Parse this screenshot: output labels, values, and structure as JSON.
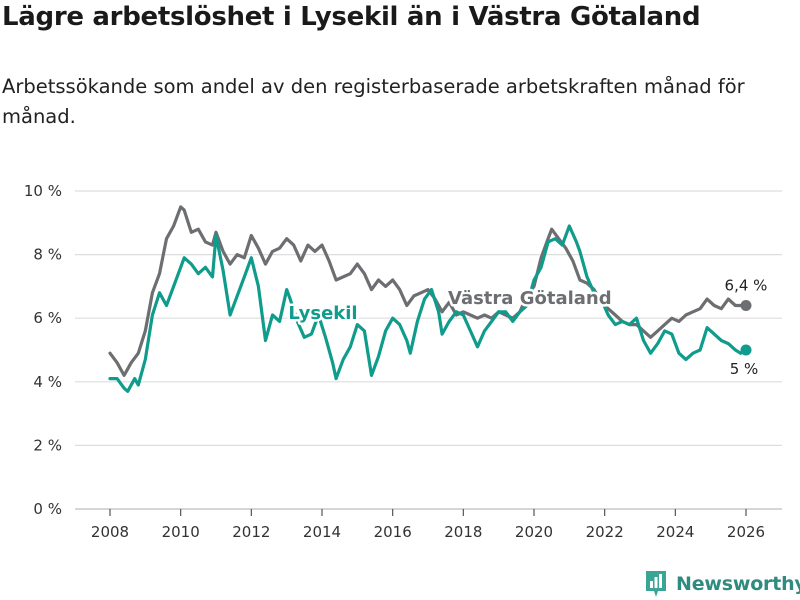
{
  "header": {
    "title": "Lägre arbetslöshet i Lysekil än i Västra Götaland",
    "subtitle": "Arbetssökande som andel av den registerbaserade arbetskraften månad för månad."
  },
  "brand": {
    "name": "Newsworthy"
  },
  "chart_data": {
    "type": "line",
    "title": "Lägre arbetslöshet i Lysekil än i Västra Götaland",
    "subtitle": "Arbetssökande som andel av den registerbaserade arbetskraften månad för månad.",
    "xlabel": "",
    "ylabel": "",
    "xlim": [
      2007.4,
      2026.6
    ],
    "ylim": [
      0,
      10
    ],
    "grid": true,
    "y_ticks": [
      {
        "value": 0,
        "label": "0 %"
      },
      {
        "value": 2,
        "label": "2 %"
      },
      {
        "value": 4,
        "label": "4 %"
      },
      {
        "value": 6,
        "label": "6 %"
      },
      {
        "value": 8,
        "label": "8 %"
      },
      {
        "value": 10,
        "label": "10 %"
      }
    ],
    "x_ticks": [
      {
        "value": 2008,
        "label": "2008"
      },
      {
        "value": 2010,
        "label": "2010"
      },
      {
        "value": 2012,
        "label": "2012"
      },
      {
        "value": 2014,
        "label": "2014"
      },
      {
        "value": 2016,
        "label": "2016"
      },
      {
        "value": 2018,
        "label": "2018"
      },
      {
        "value": 2020,
        "label": "2020"
      },
      {
        "value": 2022,
        "label": "2022"
      },
      {
        "value": 2024,
        "label": "2024"
      },
      {
        "value": 2026,
        "label": "2026"
      }
    ],
    "series": [
      {
        "name": "Västra Götaland",
        "color": "#6d6e71",
        "label_at": [
          2009.0,
          6.5
        ],
        "end_label": "6,4 %",
        "points": [
          [
            2008.0,
            4.9
          ],
          [
            2008.2,
            4.6
          ],
          [
            2008.4,
            4.2
          ],
          [
            2008.6,
            4.6
          ],
          [
            2008.8,
            4.9
          ],
          [
            2009.0,
            5.6
          ],
          [
            2009.2,
            6.8
          ],
          [
            2009.4,
            7.4
          ],
          [
            2009.6,
            8.5
          ],
          [
            2009.8,
            8.9
          ],
          [
            2010.0,
            9.5
          ],
          [
            2010.1,
            9.4
          ],
          [
            2010.3,
            8.7
          ],
          [
            2010.5,
            8.8
          ],
          [
            2010.7,
            8.4
          ],
          [
            2010.9,
            8.3
          ],
          [
            2011.0,
            8.7
          ],
          [
            2011.2,
            8.1
          ],
          [
            2011.4,
            7.7
          ],
          [
            2011.6,
            8.0
          ],
          [
            2011.8,
            7.9
          ],
          [
            2012.0,
            8.6
          ],
          [
            2012.2,
            8.2
          ],
          [
            2012.4,
            7.7
          ],
          [
            2012.6,
            8.1
          ],
          [
            2012.8,
            8.2
          ],
          [
            2013.0,
            8.5
          ],
          [
            2013.2,
            8.3
          ],
          [
            2013.4,
            7.8
          ],
          [
            2013.6,
            8.3
          ],
          [
            2013.8,
            8.1
          ],
          [
            2014.0,
            8.3
          ],
          [
            2014.2,
            7.8
          ],
          [
            2014.4,
            7.2
          ],
          [
            2014.6,
            7.3
          ],
          [
            2014.8,
            7.4
          ],
          [
            2015.0,
            7.7
          ],
          [
            2015.2,
            7.4
          ],
          [
            2015.4,
            6.9
          ],
          [
            2015.6,
            7.2
          ],
          [
            2015.8,
            7.0
          ],
          [
            2016.0,
            7.2
          ],
          [
            2016.2,
            6.9
          ],
          [
            2016.4,
            6.4
          ],
          [
            2016.6,
            6.7
          ],
          [
            2016.8,
            6.8
          ],
          [
            2017.0,
            6.9
          ],
          [
            2017.2,
            6.6
          ],
          [
            2017.4,
            6.2
          ],
          [
            2017.6,
            6.5
          ],
          [
            2017.8,
            6.1
          ],
          [
            2018.0,
            6.2
          ],
          [
            2018.2,
            6.1
          ],
          [
            2018.4,
            6.0
          ],
          [
            2018.6,
            6.1
          ],
          [
            2018.8,
            6.0
          ],
          [
            2019.0,
            6.2
          ],
          [
            2019.2,
            6.1
          ],
          [
            2019.4,
            6.0
          ],
          [
            2019.6,
            6.2
          ],
          [
            2019.8,
            6.7
          ],
          [
            2020.0,
            7.0
          ],
          [
            2020.2,
            7.9
          ],
          [
            2020.4,
            8.5
          ],
          [
            2020.5,
            8.8
          ],
          [
            2020.7,
            8.5
          ],
          [
            2020.9,
            8.2
          ],
          [
            2021.1,
            7.8
          ],
          [
            2021.3,
            7.2
          ],
          [
            2021.5,
            7.1
          ],
          [
            2021.7,
            6.9
          ],
          [
            2021.9,
            6.5
          ],
          [
            2022.1,
            6.3
          ],
          [
            2022.3,
            6.1
          ],
          [
            2022.5,
            5.9
          ],
          [
            2022.7,
            5.8
          ],
          [
            2022.9,
            5.8
          ],
          [
            2023.1,
            5.6
          ],
          [
            2023.3,
            5.4
          ],
          [
            2023.5,
            5.6
          ],
          [
            2023.7,
            5.8
          ],
          [
            2023.9,
            6.0
          ],
          [
            2024.1,
            5.9
          ],
          [
            2024.3,
            6.1
          ],
          [
            2024.5,
            6.2
          ],
          [
            2024.7,
            6.3
          ],
          [
            2024.9,
            6.6
          ],
          [
            2025.1,
            6.4
          ],
          [
            2025.3,
            6.3
          ],
          [
            2025.5,
            6.6
          ],
          [
            2025.7,
            6.4
          ],
          [
            2025.85,
            6.4
          ],
          [
            2026.0,
            6.4
          ]
        ]
      },
      {
        "name": "Lysekil",
        "color": "#0f9c8c",
        "label_at": [
          2013.9,
          6.1
        ],
        "end_label": "5 %",
        "points": [
          [
            2008.0,
            4.1
          ],
          [
            2008.2,
            4.1
          ],
          [
            2008.4,
            3.8
          ],
          [
            2008.5,
            3.7
          ],
          [
            2008.7,
            4.1
          ],
          [
            2008.8,
            3.9
          ],
          [
            2009.0,
            4.7
          ],
          [
            2009.2,
            6.1
          ],
          [
            2009.4,
            6.8
          ],
          [
            2009.6,
            6.4
          ],
          [
            2009.8,
            7.0
          ],
          [
            2010.0,
            7.6
          ],
          [
            2010.1,
            7.9
          ],
          [
            2010.3,
            7.7
          ],
          [
            2010.5,
            7.4
          ],
          [
            2010.7,
            7.6
          ],
          [
            2010.9,
            7.3
          ],
          [
            2011.0,
            8.6
          ],
          [
            2011.2,
            7.5
          ],
          [
            2011.4,
            6.1
          ],
          [
            2011.6,
            6.7
          ],
          [
            2011.8,
            7.3
          ],
          [
            2012.0,
            7.9
          ],
          [
            2012.2,
            7.0
          ],
          [
            2012.4,
            5.3
          ],
          [
            2012.6,
            6.1
          ],
          [
            2012.8,
            5.9
          ],
          [
            2013.0,
            6.9
          ],
          [
            2013.1,
            6.6
          ],
          [
            2013.3,
            5.9
          ],
          [
            2013.5,
            5.4
          ],
          [
            2013.7,
            5.5
          ],
          [
            2013.9,
            6.1
          ],
          [
            2014.1,
            5.4
          ],
          [
            2014.3,
            4.6
          ],
          [
            2014.4,
            4.1
          ],
          [
            2014.6,
            4.7
          ],
          [
            2014.8,
            5.1
          ],
          [
            2015.0,
            5.8
          ],
          [
            2015.2,
            5.6
          ],
          [
            2015.4,
            4.2
          ],
          [
            2015.6,
            4.8
          ],
          [
            2015.8,
            5.6
          ],
          [
            2016.0,
            6.0
          ],
          [
            2016.2,
            5.8
          ],
          [
            2016.4,
            5.3
          ],
          [
            2016.5,
            4.9
          ],
          [
            2016.7,
            5.9
          ],
          [
            2016.9,
            6.6
          ],
          [
            2017.1,
            6.9
          ],
          [
            2017.3,
            6.2
          ],
          [
            2017.4,
            5.5
          ],
          [
            2017.6,
            5.9
          ],
          [
            2017.8,
            6.2
          ],
          [
            2018.0,
            6.1
          ],
          [
            2018.2,
            5.6
          ],
          [
            2018.4,
            5.1
          ],
          [
            2018.6,
            5.6
          ],
          [
            2018.8,
            5.9
          ],
          [
            2019.0,
            6.2
          ],
          [
            2019.2,
            6.2
          ],
          [
            2019.4,
            5.9
          ],
          [
            2019.6,
            6.2
          ],
          [
            2019.8,
            6.4
          ],
          [
            2020.0,
            7.2
          ],
          [
            2020.2,
            7.6
          ],
          [
            2020.4,
            8.4
          ],
          [
            2020.6,
            8.5
          ],
          [
            2020.8,
            8.3
          ],
          [
            2021.0,
            8.9
          ],
          [
            2021.2,
            8.4
          ],
          [
            2021.3,
            8.1
          ],
          [
            2021.5,
            7.3
          ],
          [
            2021.7,
            6.8
          ],
          [
            2021.9,
            6.6
          ],
          [
            2022.1,
            6.1
          ],
          [
            2022.3,
            5.8
          ],
          [
            2022.5,
            5.9
          ],
          [
            2022.7,
            5.8
          ],
          [
            2022.9,
            6.0
          ],
          [
            2023.1,
            5.3
          ],
          [
            2023.3,
            4.9
          ],
          [
            2023.5,
            5.2
          ],
          [
            2023.7,
            5.6
          ],
          [
            2023.9,
            5.5
          ],
          [
            2024.1,
            4.9
          ],
          [
            2024.3,
            4.7
          ],
          [
            2024.5,
            4.9
          ],
          [
            2024.7,
            5.0
          ],
          [
            2024.9,
            5.7
          ],
          [
            2025.1,
            5.5
          ],
          [
            2025.3,
            5.3
          ],
          [
            2025.5,
            5.2
          ],
          [
            2025.7,
            5.0
          ],
          [
            2025.85,
            4.9
          ],
          [
            2026.0,
            5.0
          ]
        ]
      }
    ]
  }
}
